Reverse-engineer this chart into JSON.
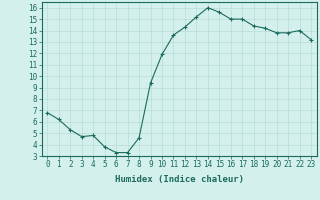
{
  "x": [
    0,
    1,
    2,
    3,
    4,
    5,
    6,
    7,
    8,
    9,
    10,
    11,
    12,
    13,
    14,
    15,
    16,
    17,
    18,
    19,
    20,
    21,
    22,
    23
  ],
  "y": [
    6.8,
    6.2,
    5.3,
    4.7,
    4.8,
    3.8,
    3.3,
    3.3,
    4.6,
    9.4,
    11.9,
    13.6,
    14.3,
    15.2,
    16.0,
    15.6,
    15.0,
    15.0,
    14.4,
    14.2,
    13.8,
    13.8,
    14.0,
    13.2
  ],
  "line_color": "#1a6b5e",
  "marker": "+",
  "marker_size": 3,
  "bg_color": "#d4f0ec",
  "grid_color": "#b8dbd6",
  "xlabel": "Humidex (Indice chaleur)",
  "xlim": [
    -0.5,
    23.5
  ],
  "ylim": [
    3,
    16.5
  ],
  "yticks": [
    3,
    4,
    5,
    6,
    7,
    8,
    9,
    10,
    11,
    12,
    13,
    14,
    15,
    16
  ],
  "xticks": [
    0,
    1,
    2,
    3,
    4,
    5,
    6,
    7,
    8,
    9,
    10,
    11,
    12,
    13,
    14,
    15,
    16,
    17,
    18,
    19,
    20,
    21,
    22,
    23
  ],
  "xtick_labels": [
    "0",
    "1",
    "2",
    "3",
    "4",
    "5",
    "6",
    "7",
    "8",
    "9",
    "10",
    "11",
    "12",
    "13",
    "14",
    "15",
    "16",
    "17",
    "18",
    "19",
    "20",
    "21",
    "22",
    "23"
  ],
  "label_fontsize": 6.5,
  "tick_fontsize": 5.5
}
